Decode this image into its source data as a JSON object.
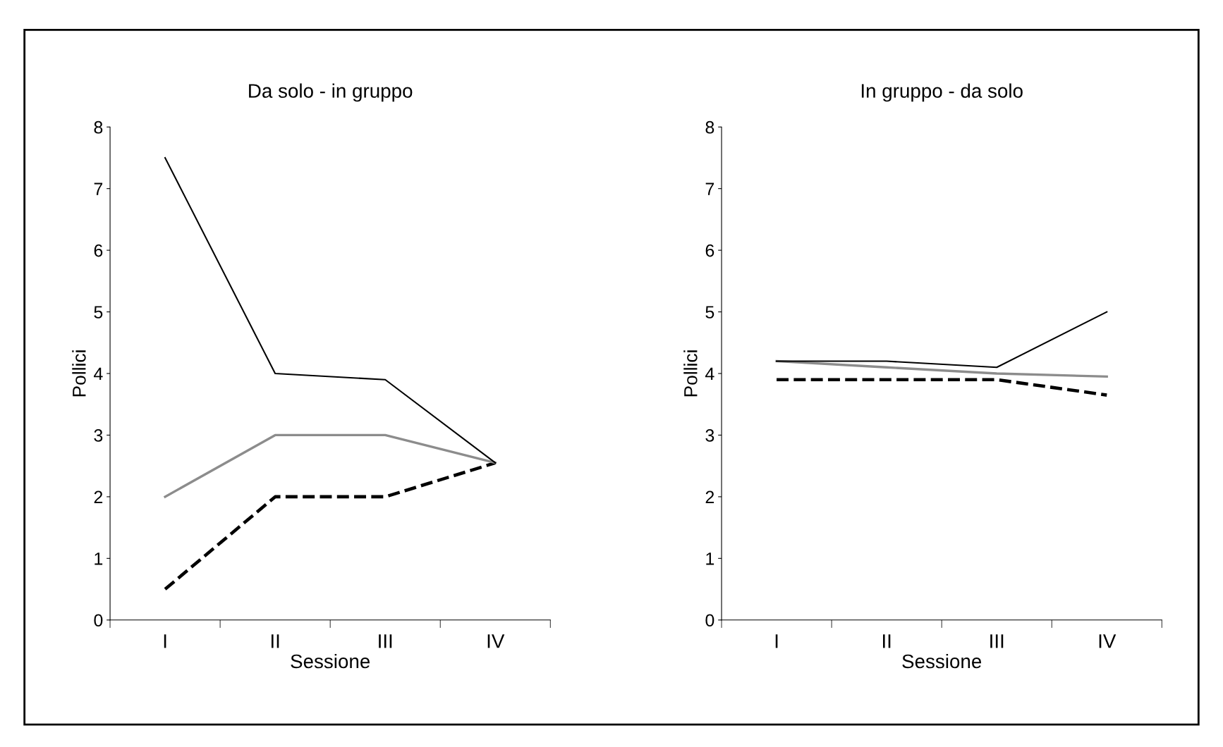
{
  "chart_data": [
    {
      "type": "line",
      "title": "Da solo - in gruppo",
      "xlabel": "Sessione",
      "ylabel": "Pollici",
      "categories": [
        "I",
        "II",
        "III",
        "IV"
      ],
      "ylim": [
        0,
        8
      ],
      "yticks": [
        0,
        1,
        2,
        3,
        4,
        5,
        6,
        7,
        8
      ],
      "grid": false,
      "legend": false,
      "marker": "none",
      "series": [
        {
          "color": "#000000",
          "line_style": "solid",
          "values": [
            7.5,
            4.0,
            3.9,
            2.55
          ]
        },
        {
          "color": "#8c8c8c",
          "line_style": "solid",
          "values": [
            2.0,
            3.0,
            3.0,
            2.55
          ]
        },
        {
          "color": "#000000",
          "line_style": "dashed",
          "values": [
            0.5,
            2.0,
            2.0,
            2.55
          ]
        }
      ]
    },
    {
      "type": "line",
      "title": "In gruppo - da solo",
      "xlabel": "Sessione",
      "ylabel": "Pollici",
      "categories": [
        "I",
        "II",
        "III",
        "IV"
      ],
      "ylim": [
        0,
        8
      ],
      "yticks": [
        0,
        1,
        2,
        3,
        4,
        5,
        6,
        7,
        8
      ],
      "grid": false,
      "legend": false,
      "marker": "none",
      "series": [
        {
          "color": "#000000",
          "line_style": "solid",
          "values": [
            4.2,
            4.2,
            4.1,
            5.0
          ]
        },
        {
          "color": "#8c8c8c",
          "line_style": "solid",
          "values": [
            4.2,
            4.1,
            4.0,
            3.95
          ]
        },
        {
          "color": "#000000",
          "line_style": "dashed",
          "values": [
            3.9,
            3.9,
            3.9,
            3.65
          ]
        }
      ]
    }
  ]
}
